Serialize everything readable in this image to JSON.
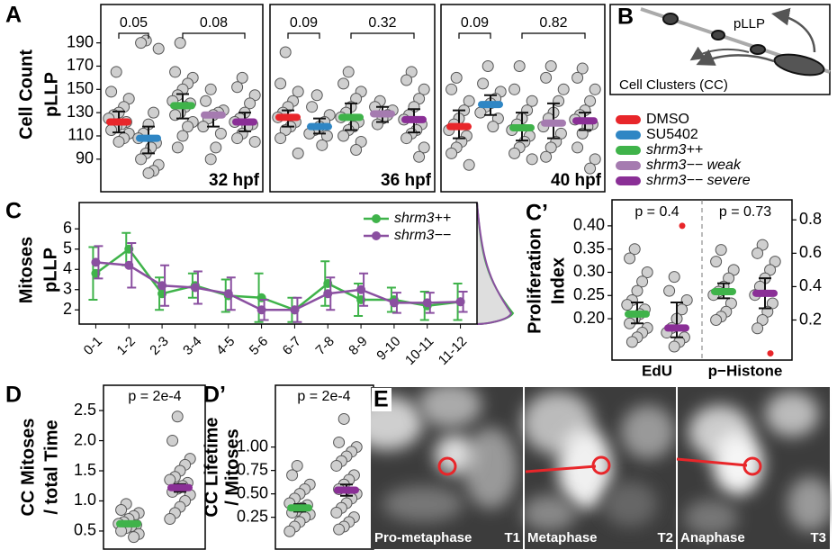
{
  "chart_data": [
    {
      "type": "dotplot",
      "panel": "A",
      "ylabel": [
        "Cell Count",
        "pLLP"
      ],
      "annotations": [
        "32 hpf"
      ],
      "comparisons": [
        "0.05",
        "0.08"
      ],
      "ylim": [
        62,
        223
      ],
      "yticks": [
        90,
        110,
        130,
        150,
        170,
        190
      ],
      "groups": [
        {
          "color": "#e8262a",
          "mean": 122,
          "lower": 113,
          "upper": 131,
          "values": [
            165,
            148,
            142,
            135,
            130,
            128,
            125,
            122,
            120,
            118,
            115,
            112,
            108,
            105
          ]
        },
        {
          "color": "#2f86c4",
          "mean": 108,
          "lower": 95,
          "upper": 118,
          "values": [
            192,
            190,
            185,
            130,
            120,
            112,
            108,
            104,
            100,
            95,
            90,
            85,
            80,
            78
          ]
        },
        {
          "color": "#3fb34a",
          "mean": 136,
          "lower": 125,
          "upper": 146,
          "values": [
            190,
            165,
            160,
            155,
            150,
            145,
            140,
            138,
            135,
            130,
            128,
            122,
            118,
            110,
            100
          ]
        },
        {
          "color": "#a57bb0",
          "mean": 128,
          "lower": 118,
          "upper": 130,
          "values": [
            150,
            140,
            132,
            130,
            128,
            125,
            118,
            112,
            100,
            90
          ]
        },
        {
          "color": "#8a2f96",
          "mean": 122,
          "lower": 114,
          "upper": 130,
          "values": [
            160,
            152,
            145,
            138,
            130,
            125,
            122,
            120,
            118,
            112,
            108,
            105
          ]
        }
      ]
    },
    {
      "type": "dotplot",
      "annotations": [
        "36 hpf"
      ],
      "comparisons": [
        "0.09",
        "0.32"
      ],
      "ylim": [
        62,
        223
      ],
      "groups": [
        {
          "color": "#e8262a",
          "mean": 126,
          "lower": 118,
          "upper": 132,
          "values": [
            182,
            155,
            148,
            140,
            135,
            130,
            126,
            122,
            118,
            115,
            108,
            95
          ]
        },
        {
          "color": "#2f86c4",
          "mean": 118,
          "lower": 112,
          "upper": 125,
          "values": [
            145,
            135,
            128,
            122,
            118,
            115,
            112,
            110,
            102
          ]
        },
        {
          "color": "#3fb34a",
          "mean": 126,
          "lower": 115,
          "upper": 138,
          "values": [
            165,
            155,
            148,
            142,
            135,
            130,
            126,
            122,
            118,
            115,
            110,
            105,
            98
          ]
        },
        {
          "color": "#a57bb0",
          "mean": 129,
          "lower": 122,
          "upper": 135,
          "values": [
            140,
            135,
            132,
            128,
            125,
            120
          ]
        },
        {
          "color": "#8a2f96",
          "mean": 124,
          "lower": 113,
          "upper": 133,
          "values": [
            165,
            158,
            150,
            142,
            135,
            128,
            124,
            120,
            115,
            112,
            108,
            100,
            92
          ]
        }
      ]
    },
    {
      "type": "dotplot",
      "annotations": [
        "40 hpf"
      ],
      "comparisons": [
        "0.09",
        "0.82"
      ],
      "ylim": [
        62,
        223
      ],
      "groups": [
        {
          "color": "#e8262a",
          "mean": 118,
          "lower": 108,
          "upper": 132,
          "values": [
            160,
            150,
            140,
            132,
            125,
            120,
            115,
            110,
            105,
            100,
            95,
            85
          ]
        },
        {
          "color": "#2f86c4",
          "mean": 137,
          "lower": 128,
          "upper": 145,
          "values": [
            170,
            155,
            148,
            142,
            138,
            135,
            130,
            125,
            118
          ]
        },
        {
          "color": "#3fb34a",
          "mean": 117,
          "lower": 106,
          "upper": 130,
          "values": [
            170,
            150,
            140,
            132,
            125,
            120,
            115,
            110,
            105,
            100,
            95,
            90
          ]
        },
        {
          "color": "#a57bb0",
          "mean": 121,
          "lower": 108,
          "upper": 138,
          "values": [
            170,
            160,
            150,
            140,
            130,
            125,
            118,
            112,
            105,
            100,
            92
          ]
        },
        {
          "color": "#8a2f96",
          "mean": 123,
          "lower": 115,
          "upper": 130,
          "values": [
            168,
            160,
            150,
            140,
            132,
            128,
            124,
            120,
            118,
            112,
            100,
            90,
            82
          ]
        }
      ]
    },
    {
      "type": "line",
      "panel": "C",
      "ylabel": [
        "Mitoses",
        "pLLP"
      ],
      "categories": [
        "0-1",
        "1-2",
        "2-3",
        "3-4",
        "4-5",
        "5-6",
        "6-7",
        "7-8",
        "8-9",
        "9-10",
        "10-11",
        "11-12"
      ],
      "ylim": [
        1.3,
        7.3
      ],
      "yticks": [
        2,
        3,
        4,
        5,
        6
      ],
      "series": [
        {
          "name": "shrm3++",
          "color": "#3fb34a",
          "values": [
            3.8,
            5.0,
            2.8,
            3.2,
            2.7,
            2.6,
            2.0,
            3.3,
            2.5,
            2.5,
            2.2,
            2.4
          ],
          "errors": [
            1.3,
            0.8,
            0.8,
            0.6,
            0.8,
            1.2,
            0.6,
            1.1,
            0.8,
            0.6,
            0.7,
            0.9
          ]
        },
        {
          "name": "shrm3−−",
          "color": "#8a4fa0",
          "values": [
            4.35,
            4.2,
            3.2,
            3.1,
            2.8,
            2.0,
            2.0,
            2.8,
            3.0,
            2.35,
            2.35,
            2.4
          ],
          "errors": [
            0.8,
            1.1,
            1.0,
            0.8,
            0.8,
            0.5,
            0.6,
            0.8,
            0.8,
            0.5,
            0.5,
            0.5
          ]
        }
      ]
    },
    {
      "type": "dotplot",
      "panel": "C’",
      "ylabel": [
        "Proliferation",
        "Index"
      ],
      "annotations": [
        "p = 0.4",
        "p = 0.73"
      ],
      "categories": [
        "EdU",
        "p−Histone"
      ],
      "ylim": [
        0.111,
        0.456
      ],
      "yticks": [
        {
          "value": 0.2,
          "label": "0.20"
        },
        0.25,
        {
          "value": 0.3,
          "label": "0.30"
        },
        0.35,
        {
          "value": 0.4,
          "label": "0.40"
        }
      ],
      "y2lim": [
        -0.04,
        0.92
      ],
      "y2ticks": [
        0.2,
        0.4,
        0.6,
        0.8
      ],
      "groups": [
        {
          "color": "#3fb34a",
          "mean": 0.21,
          "lower": 0.19,
          "upper": 0.235,
          "values": [
            0.35,
            0.33,
            0.3,
            0.28,
            0.26,
            0.24,
            0.23,
            0.22,
            0.21,
            0.2,
            0.19,
            0.18,
            0.17,
            0.16,
            0.15
          ]
        },
        {
          "color": "#8a2f96",
          "mean": 0.18,
          "lower": 0.16,
          "upper": 0.235,
          "values": [
            0.29,
            0.26,
            0.24,
            0.22,
            0.2,
            0.18,
            0.17,
            0.16,
            0.15,
            0.14
          ],
          "outliers": [
            0.4
          ]
        },
        {
          "color": "#3fb34a",
          "axis": "y2",
          "mean": 0.37,
          "lower": 0.33,
          "upper": 0.42,
          "values": [
            0.62,
            0.55,
            0.5,
            0.45,
            0.4,
            0.37,
            0.35,
            0.3,
            0.25,
            0.22,
            0.2
          ]
        },
        {
          "color": "#8a2f96",
          "axis": "y2",
          "mean": 0.36,
          "lower": 0.27,
          "upper": 0.45,
          "values": [
            0.65,
            0.6,
            0.55,
            0.5,
            0.45,
            0.4,
            0.35,
            0.3,
            0.25,
            0.2,
            0.15
          ],
          "outliers": [
            0.0
          ]
        }
      ]
    },
    {
      "type": "dotplot",
      "panel": "D",
      "ylabel": [
        "CC Mitoses",
        "/ total Time"
      ],
      "annotations": [
        "p = 2e-4"
      ],
      "ylim": [
        0.2,
        2.92
      ],
      "yticks": [
        0.5,
        {
          "value": 1,
          "label": "1.0"
        },
        1.5,
        {
          "value": 2,
          "label": "2.0"
        },
        2.5
      ],
      "groups": [
        {
          "color": "#3fb34a",
          "mean": 0.62,
          "lower": 0.58,
          "upper": 0.66,
          "values": [
            0.95,
            0.85,
            0.8,
            0.75,
            0.7,
            0.65,
            0.62,
            0.6,
            0.58,
            0.55,
            0.5,
            0.45,
            0.4
          ]
        },
        {
          "color": "#8a2f96",
          "mean": 1.22,
          "lower": 1.15,
          "upper": 1.28,
          "values": [
            2.4,
            2.0,
            1.7,
            1.6,
            1.5,
            1.4,
            1.35,
            1.3,
            1.25,
            1.2,
            1.15,
            1.1,
            1.0,
            0.9,
            0.8,
            0.7
          ]
        }
      ]
    },
    {
      "type": "dotplot",
      "panel": "D’",
      "ylabel": [
        "CC Lifetime",
        "/ Mitoses"
      ],
      "annotations": [
        "p = 2e-4"
      ],
      "ylim": [
        -0.09,
        1.66
      ],
      "yticks": [
        0.25,
        {
          "value": 0.5,
          "label": "0.50"
        },
        0.75,
        {
          "value": 1,
          "label": "1.00"
        }
      ],
      "groups": [
        {
          "color": "#3fb34a",
          "mean": 0.35,
          "lower": 0.31,
          "upper": 0.39,
          "values": [
            0.8,
            0.7,
            0.6,
            0.55,
            0.5,
            0.45,
            0.4,
            0.38,
            0.35,
            0.32,
            0.3,
            0.28,
            0.25,
            0.2,
            0.15,
            0.1
          ]
        },
        {
          "color": "#8a2f96",
          "mean": 0.54,
          "lower": 0.48,
          "upper": 0.6,
          "values": [
            1.3,
            1.05,
            1.0,
            0.95,
            0.9,
            0.85,
            0.8,
            0.7,
            0.65,
            0.6,
            0.55,
            0.5,
            0.45,
            0.4,
            0.35,
            0.3,
            0.25,
            0.2,
            0.15,
            0.12
          ]
        }
      ]
    }
  ],
  "legend": [
    {
      "name": "DMSO",
      "color": "#e8262a"
    },
    {
      "name": "SU5402",
      "color": "#2f86c4"
    },
    {
      "name": "shrm3++",
      "color": "#3fb34a"
    },
    {
      "name": "shrm3−− weak",
      "color": "#a57bb0"
    },
    {
      "name": "shrm3−− severe",
      "color": "#8a2f96"
    }
  ],
  "diagram": {
    "panel": "B",
    "labels": [
      "pLLP",
      "Cell Clusters (CC)"
    ]
  },
  "images": {
    "panel": "E",
    "frames": [
      {
        "label": "Pro-metaphase",
        "time": "T1"
      },
      {
        "label": "Metaphase",
        "time": "T2"
      },
      {
        "label": "Anaphase",
        "time": "T3"
      }
    ]
  }
}
